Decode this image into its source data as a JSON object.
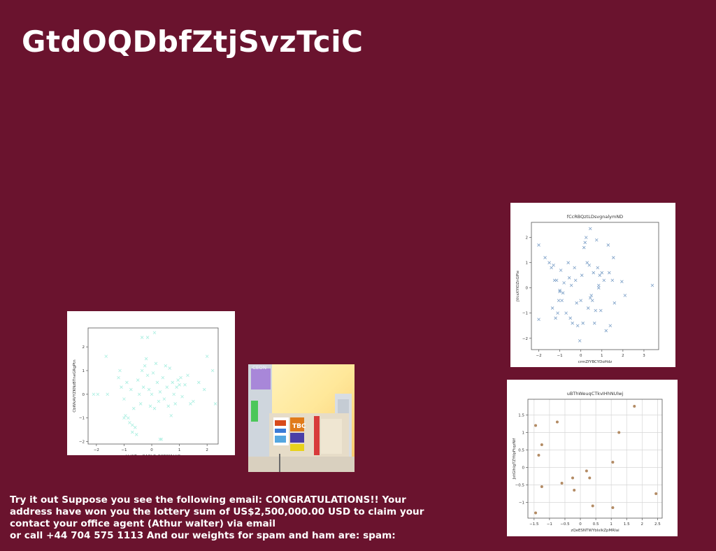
{
  "page": {
    "title": "GtdOQDbfZtjSvzTciC",
    "caption_lines": [
      "Try it out Suppose you see the following email: CONGRATULATIONS!! Your",
      "address have won you the lottery sum of US$2,500,000.00 USD to claim your",
      "contact your office agent (Athur walter) via email",
      "or call +44 704 575 1113 And our weights for spam and ham are: spam:"
    ],
    "background_color": "#6a132e"
  },
  "photo": {
    "signs": [
      "TBC",
      "CEON"
    ]
  },
  "chart_data": [
    {
      "type": "scatter",
      "title": "",
      "xlabel": "kblAZawQAQhBcBGESNVdjO",
      "ylabel": "CbWkAVYZKNzBTneGRgPtn",
      "xlim": [
        -2.3,
        2.4
      ],
      "ylim": [
        -2.1,
        2.8
      ],
      "xticks": [
        -2,
        -1,
        0,
        1,
        2
      ],
      "yticks": [
        -2,
        -1,
        0,
        1,
        2
      ],
      "marker": "x",
      "color": "#a8eee0",
      "grid": false,
      "series": [
        {
          "points": [
            [
              -2.1,
              0.0
            ],
            [
              -1.95,
              0.0
            ],
            [
              -1.6,
              0.0
            ],
            [
              -1.65,
              1.6
            ],
            [
              -1.2,
              0.7
            ],
            [
              -1.15,
              1.0
            ],
            [
              -1.1,
              0.3
            ],
            [
              -1.0,
              -0.2
            ],
            [
              -0.95,
              -0.9
            ],
            [
              -0.9,
              0.5
            ],
            [
              -0.85,
              -1.0
            ],
            [
              -0.8,
              -1.2
            ],
            [
              -0.75,
              0.2
            ],
            [
              -0.7,
              -1.3
            ],
            [
              -0.65,
              -0.6
            ],
            [
              -0.6,
              -1.4
            ],
            [
              -0.55,
              -1.7
            ],
            [
              -0.5,
              0.6
            ],
            [
              -0.45,
              0.0
            ],
            [
              -0.4,
              -0.4
            ],
            [
              -0.35,
              1.0
            ],
            [
              -0.3,
              0.3
            ],
            [
              -0.25,
              1.2
            ],
            [
              -0.2,
              1.5
            ],
            [
              -0.15,
              0.8
            ],
            [
              -0.1,
              0.2
            ],
            [
              -0.05,
              -0.5
            ],
            [
              0.0,
              0.0
            ],
            [
              0.05,
              0.9
            ],
            [
              0.1,
              -0.6
            ],
            [
              0.15,
              1.3
            ],
            [
              0.2,
              0.5
            ],
            [
              0.25,
              -0.3
            ],
            [
              0.3,
              0.1
            ],
            [
              0.35,
              -1.9
            ],
            [
              0.4,
              0.7
            ],
            [
              0.45,
              -0.2
            ],
            [
              0.5,
              1.2
            ],
            [
              0.55,
              0.3
            ],
            [
              0.6,
              -0.5
            ],
            [
              0.65,
              1.1
            ],
            [
              0.7,
              -0.9
            ],
            [
              0.75,
              0.5
            ],
            [
              0.8,
              0.0
            ],
            [
              0.85,
              -0.4
            ],
            [
              0.9,
              0.3
            ],
            [
              0.95,
              0.6
            ],
            [
              1.0,
              0.4
            ],
            [
              1.05,
              0.7
            ],
            [
              1.1,
              -0.1
            ],
            [
              1.2,
              0.4
            ],
            [
              1.3,
              0.8
            ],
            [
              1.4,
              -0.4
            ],
            [
              1.5,
              -0.3
            ],
            [
              1.7,
              0.5
            ],
            [
              1.9,
              0.2
            ],
            [
              2.0,
              1.6
            ],
            [
              2.2,
              1.0
            ],
            [
              2.3,
              -0.4
            ],
            [
              -0.35,
              2.4
            ],
            [
              -0.15,
              2.4
            ],
            [
              0.1,
              2.6
            ],
            [
              -1.0,
              -1.0
            ],
            [
              0.3,
              -1.9
            ],
            [
              -0.7,
              -1.6
            ]
          ]
        }
      ]
    },
    {
      "type": "scatter",
      "title": "fCcRBQztLDsvgnalymND",
      "xlabel": "crmZfYBCYDoHdz",
      "ylabel": "jVcsXYIOZnGPle",
      "xlim": [
        -2.35,
        3.7
      ],
      "ylim": [
        -2.45,
        2.6
      ],
      "xticks": [
        -2,
        -1,
        0,
        1,
        2,
        3
      ],
      "yticks": [
        -2,
        -1,
        0,
        1,
        2
      ],
      "marker": "x",
      "color": "#7b9fc7",
      "grid": false,
      "series": [
        {
          "points": [
            [
              -2.0,
              1.7
            ],
            [
              -2.0,
              -1.25
            ],
            [
              -1.7,
              1.2
            ],
            [
              -1.5,
              1.0
            ],
            [
              -1.4,
              0.8
            ],
            [
              -1.35,
              -0.8
            ],
            [
              -1.3,
              0.9
            ],
            [
              -1.25,
              0.3
            ],
            [
              -1.2,
              -1.2
            ],
            [
              -1.15,
              0.3
            ],
            [
              -1.1,
              -1.0
            ],
            [
              -1.05,
              -0.5
            ],
            [
              -1.0,
              -0.1
            ],
            [
              -0.95,
              0.7
            ],
            [
              -0.9,
              -0.5
            ],
            [
              -0.85,
              -0.2
            ],
            [
              -0.8,
              0.2
            ],
            [
              -0.7,
              -1.0
            ],
            [
              -0.6,
              1.0
            ],
            [
              -0.55,
              0.4
            ],
            [
              -0.5,
              -1.2
            ],
            [
              -0.45,
              0.1
            ],
            [
              -0.4,
              -1.4
            ],
            [
              -0.3,
              0.8
            ],
            [
              -0.25,
              0.3
            ],
            [
              -0.2,
              -0.6
            ],
            [
              -0.15,
              -1.5
            ],
            [
              -0.05,
              -2.1
            ],
            [
              0.0,
              -0.5
            ],
            [
              0.05,
              0.5
            ],
            [
              0.1,
              -1.4
            ],
            [
              0.15,
              1.6
            ],
            [
              0.2,
              1.8
            ],
            [
              0.25,
              2.0
            ],
            [
              0.3,
              1.0
            ],
            [
              0.35,
              -0.8
            ],
            [
              0.4,
              0.9
            ],
            [
              0.45,
              2.35
            ],
            [
              0.5,
              -0.3
            ],
            [
              0.55,
              -0.5
            ],
            [
              0.6,
              0.6
            ],
            [
              0.65,
              -1.4
            ],
            [
              0.7,
              -0.9
            ],
            [
              0.75,
              1.9
            ],
            [
              0.8,
              0.8
            ],
            [
              0.85,
              0.1
            ],
            [
              0.9,
              0.5
            ],
            [
              0.95,
              -0.9
            ],
            [
              1.0,
              0.6
            ],
            [
              1.1,
              0.3
            ],
            [
              1.2,
              -1.7
            ],
            [
              1.3,
              1.7
            ],
            [
              1.35,
              0.6
            ],
            [
              1.4,
              -1.5
            ],
            [
              1.5,
              0.3
            ],
            [
              1.6,
              -0.6
            ],
            [
              1.55,
              1.2
            ],
            [
              1.95,
              0.25
            ],
            [
              2.1,
              -0.3
            ],
            [
              3.4,
              0.1
            ],
            [
              0.85,
              0.0
            ],
            [
              -1.0,
              -0.15
            ],
            [
              0.45,
              -0.4
            ]
          ]
        }
      ]
    },
    {
      "type": "scatter",
      "title": "uBThWeuqCTkvIHhNUlwj",
      "xlabel": "zQeESNTWYbIxlkZpMRIai",
      "ylabel": "JxtGIhlgTZYtlpFtqzNif",
      "xlim": [
        -1.7,
        2.65
      ],
      "ylim": [
        -1.45,
        1.95
      ],
      "xticks": [
        -1.5,
        -1.0,
        -0.5,
        0.0,
        0.5,
        1.0,
        1.5,
        2.0,
        2.5
      ],
      "yticks": [
        -1.0,
        -0.5,
        0.0,
        0.5,
        1.0,
        1.5
      ],
      "marker": "o",
      "color": "#b38b64",
      "grid": true,
      "series": [
        {
          "points": [
            [
              -1.45,
              1.2
            ],
            [
              -1.35,
              0.35
            ],
            [
              -1.25,
              0.65
            ],
            [
              -1.25,
              -0.55
            ],
            [
              -1.45,
              -1.3
            ],
            [
              -0.75,
              1.3
            ],
            [
              -0.6,
              -0.45
            ],
            [
              -0.25,
              -0.3
            ],
            [
              -0.2,
              -0.65
            ],
            [
              0.2,
              -0.1
            ],
            [
              0.3,
              -0.3
            ],
            [
              0.4,
              -1.1
            ],
            [
              1.05,
              0.15
            ],
            [
              1.05,
              -1.15
            ],
            [
              1.25,
              1.0
            ],
            [
              1.75,
              1.75
            ],
            [
              2.45,
              -0.75
            ]
          ]
        }
      ]
    }
  ]
}
